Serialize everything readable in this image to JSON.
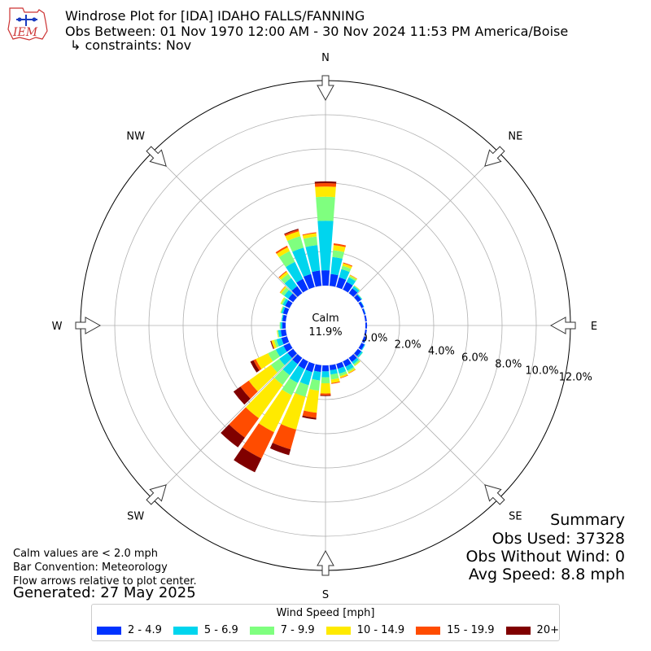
{
  "header": {
    "title_line1": "Windrose Plot for [IDA] IDAHO FALLS/FANNING",
    "title_line2": "Obs Between: 01 Nov 1970 12:00 AM - 30 Nov 2024 11:53 PM America/Boise",
    "title_line3": "↳ constraints: Nov",
    "logo_text": "IEM"
  },
  "chart_data": {
    "type": "windrose",
    "calm_label": "Calm",
    "calm_value": "11.9%",
    "radial_ticks": [
      "0.0%",
      "2.0%",
      "4.0%",
      "6.0%",
      "8.0%",
      "10.0%",
      "12.0%"
    ],
    "radial_max": 12.0,
    "direction_labels": [
      "N",
      "NE",
      "E",
      "SE",
      "S",
      "SW",
      "W",
      "NW"
    ],
    "legend_title": "Wind Speed [mph]",
    "bins": [
      {
        "label": "2 - 4.9",
        "color": "#0033ff"
      },
      {
        "label": "5 - 6.9",
        "color": "#00d5ee"
      },
      {
        "label": "7 - 9.9",
        "color": "#7fff7f"
      },
      {
        "label": "10 - 14.9",
        "color": "#ffea00"
      },
      {
        "label": "15 - 19.9",
        "color": "#ff4c00"
      },
      {
        "label": "20+",
        "color": "#800000"
      }
    ],
    "directions_deg": [
      0,
      10,
      20,
      30,
      40,
      50,
      60,
      70,
      80,
      90,
      100,
      110,
      120,
      130,
      140,
      150,
      160,
      170,
      180,
      190,
      200,
      210,
      220,
      230,
      240,
      250,
      260,
      270,
      280,
      290,
      300,
      310,
      320,
      330,
      340,
      350
    ],
    "frequency_pct": [
      [
        0.9,
        2.9,
        1.4,
        0.6,
        0.2,
        0.1
      ],
      [
        0.7,
        1.0,
        0.4,
        0.3,
        0.1,
        0.0
      ],
      [
        0.6,
        0.5,
        0.2,
        0.15,
        0.05,
        0.0
      ],
      [
        0.5,
        0.3,
        0.1,
        0.05,
        0.02,
        0.0
      ],
      [
        0.35,
        0.15,
        0.05,
        0.02,
        0.0,
        0.0
      ],
      [
        0.25,
        0.05,
        0.02,
        0.0,
        0.0,
        0.0
      ],
      [
        0.15,
        0.03,
        0.0,
        0.0,
        0.0,
        0.0
      ],
      [
        0.1,
        0.02,
        0.0,
        0.0,
        0.0,
        0.0
      ],
      [
        0.1,
        0.0,
        0.0,
        0.0,
        0.0,
        0.0
      ],
      [
        0.1,
        0.0,
        0.0,
        0.0,
        0.0,
        0.0
      ],
      [
        0.1,
        0.0,
        0.0,
        0.0,
        0.0,
        0.0
      ],
      [
        0.15,
        0.02,
        0.0,
        0.0,
        0.0,
        0.0
      ],
      [
        0.2,
        0.05,
        0.0,
        0.0,
        0.0,
        0.0
      ],
      [
        0.25,
        0.1,
        0.02,
        0.0,
        0.0,
        0.0
      ],
      [
        0.3,
        0.15,
        0.1,
        0.05,
        0.0,
        0.0
      ],
      [
        0.35,
        0.25,
        0.1,
        0.08,
        0.02,
        0.0
      ],
      [
        0.3,
        0.3,
        0.15,
        0.1,
        0.03,
        0.0
      ],
      [
        0.3,
        0.25,
        0.3,
        0.2,
        0.05,
        0.0
      ],
      [
        0.35,
        0.35,
        0.35,
        0.6,
        0.1,
        0.05
      ],
      [
        0.4,
        0.5,
        0.6,
        1.3,
        0.3,
        0.1
      ],
      [
        0.5,
        0.8,
        0.7,
        2.0,
        1.2,
        0.35
      ],
      [
        0.5,
        0.9,
        0.8,
        2.4,
        1.7,
        0.9
      ],
      [
        0.45,
        0.8,
        0.7,
        2.4,
        1.4,
        0.7
      ],
      [
        0.4,
        0.6,
        0.6,
        1.6,
        0.6,
        0.5
      ],
      [
        0.4,
        0.5,
        0.5,
        0.8,
        0.15,
        0.2
      ],
      [
        0.35,
        0.3,
        0.15,
        0.15,
        0.02,
        0.05
      ],
      [
        0.3,
        0.15,
        0.05,
        0.03,
        0.0,
        0.0
      ],
      [
        0.2,
        0.1,
        0.05,
        0.0,
        0.0,
        0.0
      ],
      [
        0.2,
        0.05,
        0.02,
        0.0,
        0.0,
        0.0
      ],
      [
        0.25,
        0.1,
        0.05,
        0.02,
        0.0,
        0.0
      ],
      [
        0.3,
        0.15,
        0.1,
        0.05,
        0.0,
        0.0
      ],
      [
        0.35,
        0.3,
        0.2,
        0.1,
        0.02,
        0.0
      ],
      [
        0.5,
        0.6,
        0.3,
        0.15,
        0.05,
        0.0
      ],
      [
        0.7,
        1.1,
        0.7,
        0.25,
        0.1,
        0.0
      ],
      [
        0.8,
        1.6,
        0.7,
        0.3,
        0.1,
        0.05
      ],
      [
        0.9,
        1.5,
        0.5,
        0.2,
        0.05,
        0.0
      ]
    ],
    "grid": true
  },
  "summary": {
    "heading": "Summary",
    "obs_used": "Obs Used: 37328",
    "obs_without_wind": "Obs Without Wind: 0",
    "avg_speed": "Avg Speed: 8.8 mph"
  },
  "notes": {
    "line1": "Calm values are < 2.0 mph",
    "line2": "Bar Convention: Meteorology",
    "line3": "Flow arrows relative to plot center.",
    "generated": "Generated: 27 May 2025"
  }
}
